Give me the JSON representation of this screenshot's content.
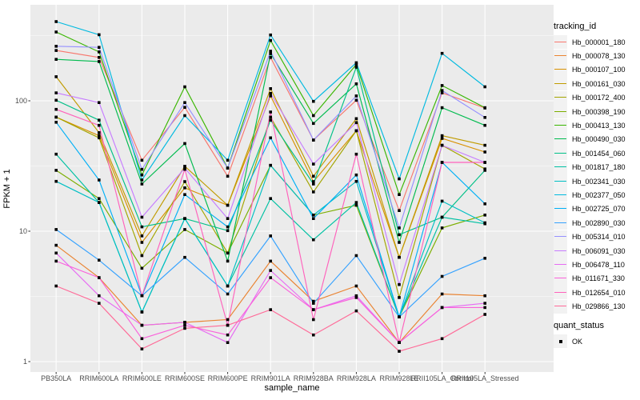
{
  "chart_data": {
    "type": "line",
    "title": "",
    "xlabel": "sample_name",
    "ylabel": "FPKM + 1",
    "y_scale": "log10",
    "y_ticks": [
      1,
      10,
      100
    ],
    "y_minor_ticks": [
      3.16,
      31.6,
      316
    ],
    "ylim": [
      0.83,
      516
    ],
    "grid": "on",
    "panel_background": "#EBEBEB",
    "gridline_color": "#FFFFFF",
    "point_shape": "filled-square",
    "point_color": "#000000",
    "legend_position": "right",
    "categories": [
      "PB350LA",
      "RRIM600LA",
      "RRIM600LE",
      "RRIM600SE",
      "RRIM600PE",
      "RRIM901LA",
      "RRIM928BA",
      "RRIM928LA",
      "RRIM928LE",
      "RRII105LA_Control",
      "RRII105LA_Stressed"
    ],
    "series": [
      {
        "name": "Hb_000001_180",
        "color": "#F8766D",
        "values": [
          243,
          215,
          35,
          89,
          26.4,
          215,
          50,
          101,
          14.4,
          115,
          88
        ]
      },
      {
        "name": "Hb_000078_130",
        "color": "#EA8331",
        "values": [
          7.8,
          4.4,
          1.9,
          2.0,
          2.1,
          5.9,
          2.9,
          3.8,
          1.4,
          3.3,
          3.2
        ]
      },
      {
        "name": "Hb_000107_100",
        "color": "#D89000",
        "values": [
          75,
          54,
          8.2,
          21.5,
          15.8,
          109,
          24,
          59,
          6.3,
          51.5,
          40.5
        ]
      },
      {
        "name": "Hb_000161_030",
        "color": "#C09B00",
        "values": [
          153,
          57,
          9.2,
          31.5,
          15.8,
          124,
          26.4,
          73,
          6.3,
          54,
          45.6
        ]
      },
      {
        "name": "Hb_000172_400",
        "color": "#A3A500",
        "values": [
          75,
          52,
          6.5,
          24,
          6.8,
          75,
          20,
          59,
          3.1,
          45.6,
          30
        ]
      },
      {
        "name": "Hb_000398_190",
        "color": "#7CAE00",
        "values": [
          29.3,
          17.8,
          5.2,
          10.3,
          6.8,
          32,
          13.3,
          15.8,
          2.2,
          10.6,
          13.3
        ]
      },
      {
        "name": "Hb_000413_130",
        "color": "#39B600",
        "values": [
          337,
          237,
          27,
          128,
          30.5,
          290,
          77,
          190,
          19.1,
          131,
          88.5
        ]
      },
      {
        "name": "Hb_000490_030",
        "color": "#00BB4E",
        "values": [
          208,
          200,
          23,
          47,
          5.9,
          230,
          67,
          135,
          8.2,
          88.5,
          64.8
        ]
      },
      {
        "name": "Hb_001454_060",
        "color": "#00C087",
        "values": [
          101,
          71,
          10.8,
          12.5,
          10.1,
          71,
          23,
          181,
          9.4,
          12.8,
          29.3
        ]
      },
      {
        "name": "Hb_001817_180",
        "color": "#00C1A3",
        "values": [
          39,
          16.6,
          2.4,
          12.5,
          3.8,
          17.8,
          8.6,
          16.6,
          2.2,
          12.8,
          11.4
        ]
      },
      {
        "name": "Hb_002341_030",
        "color": "#00BFC4",
        "values": [
          24.1,
          16.6,
          2.4,
          12.5,
          3.8,
          32,
          13.3,
          24.1,
          2.2,
          17,
          11.6
        ]
      },
      {
        "name": "Hb_002377_050",
        "color": "#00BAE0",
        "values": [
          405,
          321,
          24.7,
          77,
          35,
          320,
          99,
          196,
          25.2,
          231,
          128
        ]
      },
      {
        "name": "Hb_002725_070",
        "color": "#00B0F6",
        "values": [
          68.5,
          24.7,
          3.2,
          19.1,
          10.8,
          52,
          12.5,
          27,
          2.2,
          33.7,
          16.2
        ]
      },
      {
        "name": "Hb_002890_030",
        "color": "#35A2FF",
        "values": [
          10.3,
          6.0,
          3.2,
          6.3,
          3.3,
          9.2,
          2.8,
          6.5,
          2.2,
          4.5,
          6.2
        ]
      },
      {
        "name": "Hb_005314_010",
        "color": "#9590FF",
        "values": [
          262,
          257,
          29.8,
          97,
          30.5,
          240,
          50,
          109,
          10.6,
          120,
          74.5
        ]
      },
      {
        "name": "Hb_006091_030",
        "color": "#C77CFF",
        "values": [
          115,
          97,
          12.8,
          30.5,
          12.5,
          114,
          32.7,
          68,
          3.9,
          45.6,
          33.7
        ]
      },
      {
        "name": "Hb_006478_110",
        "color": "#E76BF3",
        "values": [
          6.8,
          3.2,
          1.9,
          2.0,
          1.4,
          5.0,
          2.5,
          3.2,
          1.4,
          2.6,
          2.8
        ]
      },
      {
        "name": "Hb_011671_330",
        "color": "#FA62DB",
        "values": [
          5.9,
          4.4,
          1.5,
          1.9,
          1.6,
          4.4,
          2.5,
          3.1,
          1.4,
          2.6,
          2.6
        ]
      },
      {
        "name": "Hb_012654_010",
        "color": "#FF62BC",
        "values": [
          86,
          64.8,
          3.2,
          29.8,
          1.9,
          82,
          2.1,
          39,
          1.4,
          33.7,
          33.7
        ]
      },
      {
        "name": "Hb_029866_130",
        "color": "#FF6A98",
        "values": [
          3.8,
          2.8,
          1.25,
          1.8,
          1.9,
          2.5,
          1.6,
          2.45,
          1.2,
          1.5,
          2.3
        ]
      }
    ],
    "legend": {
      "series_title": "tracking_id",
      "shape_title": "quant_status",
      "shape_label": "OK"
    }
  }
}
